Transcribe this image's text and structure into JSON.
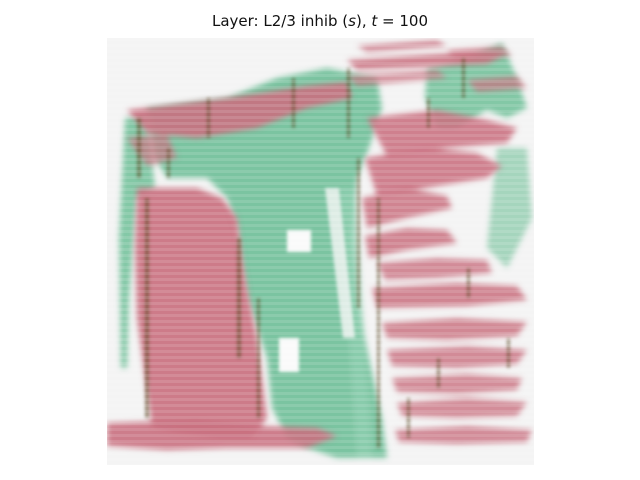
{
  "figure": {
    "title_prefix": "Layer: L2/3 inhib (",
    "title_var": "s",
    "title_mid": "), ",
    "title_t": "t",
    "title_eq": " = 100"
  },
  "colors": {
    "background": "#f4f4f4",
    "pink": "#c9707f",
    "green": "#6fbf98",
    "dark_edge": "#5a4a22"
  }
}
